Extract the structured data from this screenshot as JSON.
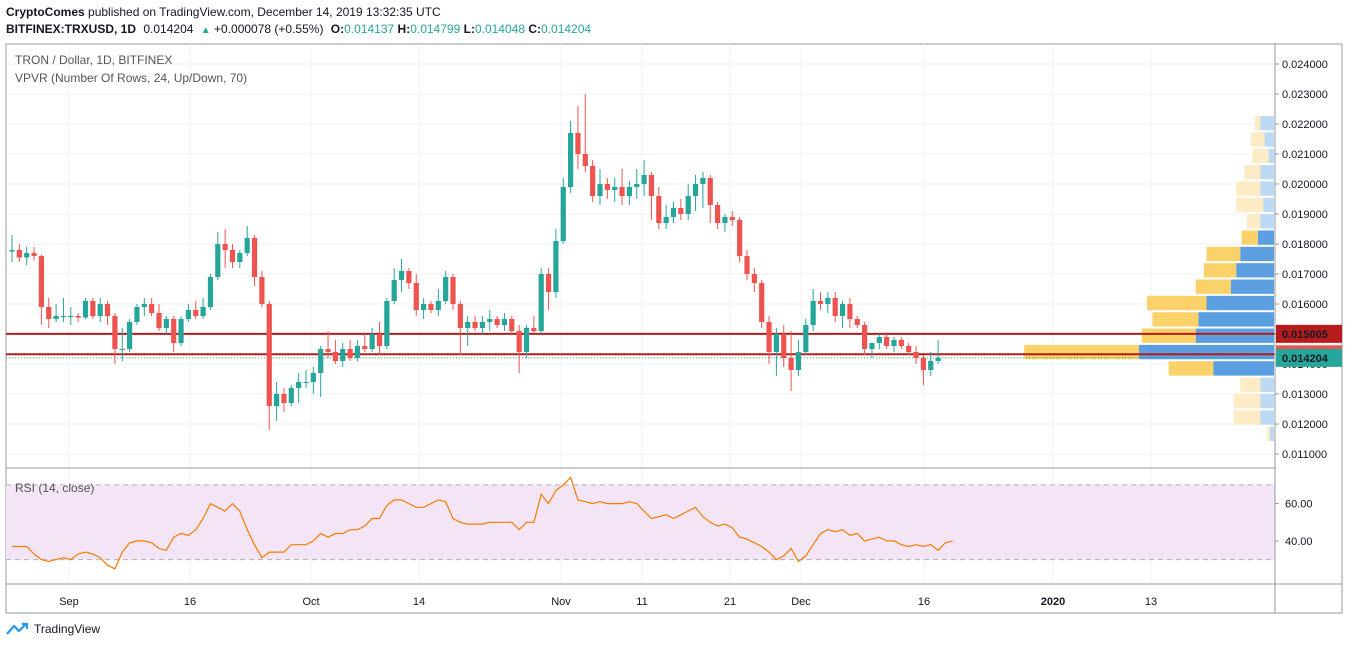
{
  "header": {
    "brand": "CryptoComes",
    "published": " published on TradingView.com, December 14, 2019 13:32:35 UTC",
    "symbol": "BITFINEX:TRXUSD, 1D",
    "last": "0.014204",
    "change_arrow": "▲",
    "change": "+0.000078 (+0.55%)",
    "o_label": "O:",
    "o_value": "0.014137",
    "h_label": "H:",
    "h_value": "0.014799",
    "l_label": "L:",
    "l_value": "0.014048",
    "c_label": "C:",
    "c_value": "0.014204"
  },
  "legend": {
    "title": "TRON / Dollar, 1D, BITFINEX",
    "indicator": "VPVR (Number Of Rows, 24, Up/Down, 70)",
    "rsi": "RSI (14, close)"
  },
  "footer": {
    "brand": "TradingView",
    "icon": "tradingview-logo-icon"
  },
  "colors": {
    "up": "#26a69a",
    "down": "#ef5350",
    "rsi_line": "#f57c00",
    "rsi_band": "#f3e5f5",
    "hline": "#b71c1c",
    "vol_up": "#5b9fe0",
    "vol_down": "#fbd26a",
    "vol_up_light": "#bcdaf5",
    "vol_down_light": "#fcebc4"
  },
  "chart_data": [
    {
      "type": "candlestick",
      "y_axis_ticks": [
        "0.024000",
        "0.023000",
        "0.022000",
        "0.021000",
        "0.020000",
        "0.019000",
        "0.018000",
        "0.017000",
        "0.016000",
        "0.015000",
        "0.014000",
        "0.013000",
        "0.012000",
        "0.011000"
      ],
      "ylim": [
        0.0106,
        0.0246
      ],
      "x_axis_ticks": [
        "Sep",
        "16",
        "Oct",
        "14",
        "Nov",
        "11",
        "21",
        "Dec",
        "16",
        "2020",
        "13"
      ],
      "price_labels": [
        {
          "text": "0.015005",
          "value": 0.015005,
          "color": "#b71c1c"
        },
        {
          "text": "0.014324",
          "value": 0.014324,
          "color": "#ef5350"
        },
        {
          "text": "0.014204",
          "value": 0.014204,
          "color": "#26a69a"
        }
      ],
      "horizontal_lines": [
        0.015005,
        0.014324
      ],
      "ohlc": [
        [
          0.01775,
          0.0183,
          0.0174,
          0.0178
        ],
        [
          0.0178,
          0.018,
          0.0174,
          0.01755
        ],
        [
          0.01755,
          0.0179,
          0.0173,
          0.0177
        ],
        [
          0.0177,
          0.0179,
          0.01745,
          0.0176
        ],
        [
          0.0176,
          0.01765,
          0.0153,
          0.0159
        ],
        [
          0.0159,
          0.0162,
          0.0152,
          0.0155
        ],
        [
          0.0155,
          0.016,
          0.0154,
          0.0156
        ],
        [
          0.0156,
          0.0162,
          0.0154,
          0.0156
        ],
        [
          0.0156,
          0.0159,
          0.0153,
          0.0156
        ],
        [
          0.0156,
          0.0157,
          0.0154,
          0.01555
        ],
        [
          0.01555,
          0.0162,
          0.0155,
          0.0161
        ],
        [
          0.0161,
          0.0162,
          0.0155,
          0.0156
        ],
        [
          0.0156,
          0.0162,
          0.0154,
          0.016
        ],
        [
          0.016,
          0.0161,
          0.0153,
          0.0156
        ],
        [
          0.0156,
          0.0157,
          0.014,
          0.0145
        ],
        [
          0.0145,
          0.0152,
          0.0141,
          0.0145
        ],
        [
          0.0145,
          0.0155,
          0.0144,
          0.0154
        ],
        [
          0.0154,
          0.016,
          0.0153,
          0.0159
        ],
        [
          0.0159,
          0.0162,
          0.0156,
          0.016
        ],
        [
          0.016,
          0.0162,
          0.0156,
          0.0157
        ],
        [
          0.0157,
          0.016,
          0.0151,
          0.0152
        ],
        [
          0.0152,
          0.0156,
          0.015,
          0.0155
        ],
        [
          0.0155,
          0.0156,
          0.0144,
          0.0147
        ],
        [
          0.0147,
          0.0156,
          0.0146,
          0.0155
        ],
        [
          0.0155,
          0.016,
          0.0154,
          0.0158
        ],
        [
          0.0158,
          0.0161,
          0.0155,
          0.0156
        ],
        [
          0.0156,
          0.0162,
          0.0155,
          0.0159
        ],
        [
          0.0159,
          0.017,
          0.0158,
          0.0169
        ],
        [
          0.0169,
          0.0184,
          0.0168,
          0.018
        ],
        [
          0.018,
          0.0185,
          0.0172,
          0.0178
        ],
        [
          0.0178,
          0.018,
          0.0172,
          0.0174
        ],
        [
          0.0174,
          0.0178,
          0.0172,
          0.0177
        ],
        [
          0.0177,
          0.0186,
          0.0176,
          0.0182
        ],
        [
          0.0182,
          0.0183,
          0.0166,
          0.0169
        ],
        [
          0.0169,
          0.0171,
          0.0159,
          0.016
        ],
        [
          0.016,
          0.0161,
          0.0118,
          0.0126
        ],
        [
          0.0126,
          0.0134,
          0.0121,
          0.013
        ],
        [
          0.013,
          0.0132,
          0.0124,
          0.0127
        ],
        [
          0.0127,
          0.0133,
          0.0126,
          0.0132
        ],
        [
          0.0132,
          0.0137,
          0.0127,
          0.0134
        ],
        [
          0.0134,
          0.0138,
          0.0132,
          0.0134
        ],
        [
          0.0134,
          0.0139,
          0.013,
          0.0137
        ],
        [
          0.0137,
          0.0146,
          0.0129,
          0.0145
        ],
        [
          0.0145,
          0.0151,
          0.0142,
          0.0144
        ],
        [
          0.0144,
          0.0148,
          0.014,
          0.0141
        ],
        [
          0.0141,
          0.0147,
          0.0139,
          0.0145
        ],
        [
          0.0145,
          0.0148,
          0.0141,
          0.0142
        ],
        [
          0.0142,
          0.0148,
          0.0141,
          0.0146
        ],
        [
          0.0146,
          0.015,
          0.0144,
          0.0145
        ],
        [
          0.0145,
          0.0152,
          0.0144,
          0.015
        ],
        [
          0.015,
          0.0154,
          0.0143,
          0.0146
        ],
        [
          0.0146,
          0.0162,
          0.0145,
          0.0161
        ],
        [
          0.0161,
          0.0172,
          0.016,
          0.0168
        ],
        [
          0.0168,
          0.0175,
          0.0164,
          0.0171
        ],
        [
          0.0171,
          0.0172,
          0.0165,
          0.0167
        ],
        [
          0.0167,
          0.017,
          0.0156,
          0.0158
        ],
        [
          0.0158,
          0.0162,
          0.0155,
          0.016
        ],
        [
          0.016,
          0.0161,
          0.0157,
          0.0158
        ],
        [
          0.0158,
          0.0165,
          0.0156,
          0.0161
        ],
        [
          0.0161,
          0.0171,
          0.016,
          0.0169
        ],
        [
          0.0169,
          0.017,
          0.0158,
          0.016
        ],
        [
          0.016,
          0.0161,
          0.0143,
          0.0152
        ],
        [
          0.0152,
          0.0156,
          0.0146,
          0.0154
        ],
        [
          0.0154,
          0.0156,
          0.0151,
          0.0152
        ],
        [
          0.0152,
          0.0156,
          0.015,
          0.0154
        ],
        [
          0.0154,
          0.0158,
          0.0151,
          0.0155
        ],
        [
          0.0155,
          0.0156,
          0.0152,
          0.0153
        ],
        [
          0.0153,
          0.0157,
          0.0151,
          0.0155
        ],
        [
          0.0155,
          0.0156,
          0.015,
          0.0151
        ],
        [
          0.0151,
          0.0153,
          0.0137,
          0.0144
        ],
        [
          0.0144,
          0.0153,
          0.0142,
          0.0152
        ],
        [
          0.0152,
          0.0156,
          0.015,
          0.0151
        ],
        [
          0.0151,
          0.0172,
          0.015,
          0.017
        ],
        [
          0.017,
          0.0172,
          0.0158,
          0.0164
        ],
        [
          0.0164,
          0.0185,
          0.0162,
          0.0181
        ],
        [
          0.0181,
          0.0202,
          0.018,
          0.0199
        ],
        [
          0.0199,
          0.0221,
          0.0197,
          0.0217
        ],
        [
          0.0217,
          0.0226,
          0.0205,
          0.021
        ],
        [
          0.021,
          0.023,
          0.0204,
          0.0206
        ],
        [
          0.0206,
          0.0208,
          0.0194,
          0.0196
        ],
        [
          0.0196,
          0.0205,
          0.0193,
          0.02
        ],
        [
          0.02,
          0.0202,
          0.0195,
          0.0198
        ],
        [
          0.0198,
          0.0202,
          0.0194,
          0.0199
        ],
        [
          0.0199,
          0.0205,
          0.0193,
          0.0196
        ],
        [
          0.0196,
          0.0201,
          0.0193,
          0.0199
        ],
        [
          0.0199,
          0.0205,
          0.0195,
          0.02
        ],
        [
          0.02,
          0.0208,
          0.0196,
          0.0203
        ],
        [
          0.0203,
          0.0204,
          0.0188,
          0.0196
        ],
        [
          0.0196,
          0.0199,
          0.0185,
          0.0187
        ],
        [
          0.0187,
          0.0193,
          0.0185,
          0.0189
        ],
        [
          0.0189,
          0.0194,
          0.0187,
          0.0192
        ],
        [
          0.0192,
          0.0195,
          0.0188,
          0.019
        ],
        [
          0.019,
          0.02,
          0.0188,
          0.0196
        ],
        [
          0.0196,
          0.0203,
          0.0191,
          0.02
        ],
        [
          0.02,
          0.0204,
          0.0192,
          0.0202
        ],
        [
          0.0202,
          0.0203,
          0.0187,
          0.0193
        ],
        [
          0.0193,
          0.0194,
          0.0185,
          0.0187
        ],
        [
          0.0187,
          0.019,
          0.0184,
          0.0189
        ],
        [
          0.0189,
          0.0191,
          0.0186,
          0.0188
        ],
        [
          0.0188,
          0.0189,
          0.0174,
          0.0176
        ],
        [
          0.0176,
          0.0178,
          0.0168,
          0.017
        ],
        [
          0.017,
          0.0172,
          0.0164,
          0.0167
        ],
        [
          0.0167,
          0.0168,
          0.0152,
          0.0154
        ],
        [
          0.0154,
          0.0156,
          0.014,
          0.0144
        ],
        [
          0.0144,
          0.0152,
          0.0136,
          0.015
        ],
        [
          0.015,
          0.0153,
          0.0139,
          0.0142
        ],
        [
          0.0142,
          0.0151,
          0.0131,
          0.0138
        ],
        [
          0.0138,
          0.0148,
          0.0136,
          0.0144
        ],
        [
          0.0144,
          0.0155,
          0.0143,
          0.0153
        ],
        [
          0.0153,
          0.0165,
          0.0151,
          0.0161
        ],
        [
          0.0161,
          0.0164,
          0.0158,
          0.016
        ],
        [
          0.016,
          0.0164,
          0.0157,
          0.0162
        ],
        [
          0.0162,
          0.0164,
          0.0154,
          0.0156
        ],
        [
          0.0156,
          0.0161,
          0.0152,
          0.016
        ],
        [
          0.016,
          0.0162,
          0.0152,
          0.0155
        ],
        [
          0.0155,
          0.0156,
          0.0152,
          0.0153
        ],
        [
          0.0153,
          0.0154,
          0.0143,
          0.0145
        ],
        [
          0.0145,
          0.0147,
          0.0142,
          0.0147
        ],
        [
          0.0147,
          0.015,
          0.0145,
          0.0149
        ],
        [
          0.0149,
          0.015,
          0.0145,
          0.0146
        ],
        [
          0.0146,
          0.0149,
          0.0144,
          0.0148
        ],
        [
          0.0148,
          0.0149,
          0.0145,
          0.0146
        ],
        [
          0.0146,
          0.0147,
          0.0143,
          0.0144
        ],
        [
          0.0144,
          0.0146,
          0.014,
          0.0142
        ],
        [
          0.0142,
          0.0143,
          0.0133,
          0.0138
        ],
        [
          0.0138,
          0.0144,
          0.0136,
          0.0141
        ],
        [
          0.0141,
          0.0148,
          0.014,
          0.0142
        ]
      ]
    },
    {
      "type": "volume_profile",
      "value_area": [
        {
          "up": 0.1,
          "down": 0.04
        },
        {
          "up": 0.07,
          "down": 0.1
        },
        {
          "up": 0.04,
          "down": 0.12
        },
        {
          "up": 0.1,
          "down": 0.12
        },
        {
          "up": 0.1,
          "down": 0.18
        },
        {
          "up": 0.08,
          "down": 0.2
        },
        {
          "up": 0.1,
          "down": 0.1
        },
        {
          "up": 0.12,
          "down": 0.12
        },
        {
          "up": 0.25,
          "down": 0.25
        },
        {
          "up": 0.28,
          "down": 0.24
        },
        {
          "up": 0.32,
          "down": 0.26
        },
        {
          "up": 0.5,
          "down": 0.44
        },
        {
          "up": 0.56,
          "down": 0.34
        },
        {
          "up": 0.58,
          "down": 0.4
        },
        {
          "up": 1.0,
          "down": 0.85
        },
        {
          "up": 0.45,
          "down": 0.33
        },
        {
          "up": 0.1,
          "down": 0.15
        },
        {
          "up": 0.1,
          "down": 0.2
        },
        {
          "up": 0.1,
          "down": 0.2
        },
        {
          "up": 0.03,
          "down": 0.02
        }
      ]
    },
    {
      "type": "line",
      "name": "RSI (14, close)",
      "y_axis_ticks": [
        "60.00",
        "40.00"
      ],
      "ylim": [
        18,
        78
      ],
      "bands": [
        70,
        30
      ],
      "values": [
        37,
        37,
        37,
        33,
        30,
        29,
        30,
        31,
        30,
        33,
        34,
        33,
        31,
        27,
        25,
        34,
        39,
        40,
        40,
        39,
        36,
        35,
        42,
        44,
        43,
        46,
        52,
        60,
        58,
        56,
        60,
        56,
        46,
        38,
        31,
        34,
        34,
        34,
        38,
        38,
        38,
        40,
        44,
        42,
        44,
        44,
        46,
        46,
        48,
        52,
        52,
        59,
        62,
        62,
        60,
        58,
        58,
        60,
        62,
        61,
        52,
        50,
        49,
        49,
        49,
        50,
        50,
        50,
        50,
        46,
        50,
        50,
        65,
        60,
        67,
        70,
        74,
        62,
        61,
        60,
        61,
        60,
        60,
        60,
        61,
        60,
        56,
        52,
        53,
        54,
        52,
        54,
        56,
        58,
        53,
        50,
        48,
        49,
        47,
        42,
        41,
        39,
        37,
        34,
        30,
        32,
        36,
        29,
        32,
        38,
        44,
        46,
        45,
        46,
        43,
        44,
        40,
        41,
        42,
        40,
        40,
        38,
        37,
        38,
        37,
        38,
        35,
        39,
        40
      ]
    }
  ]
}
